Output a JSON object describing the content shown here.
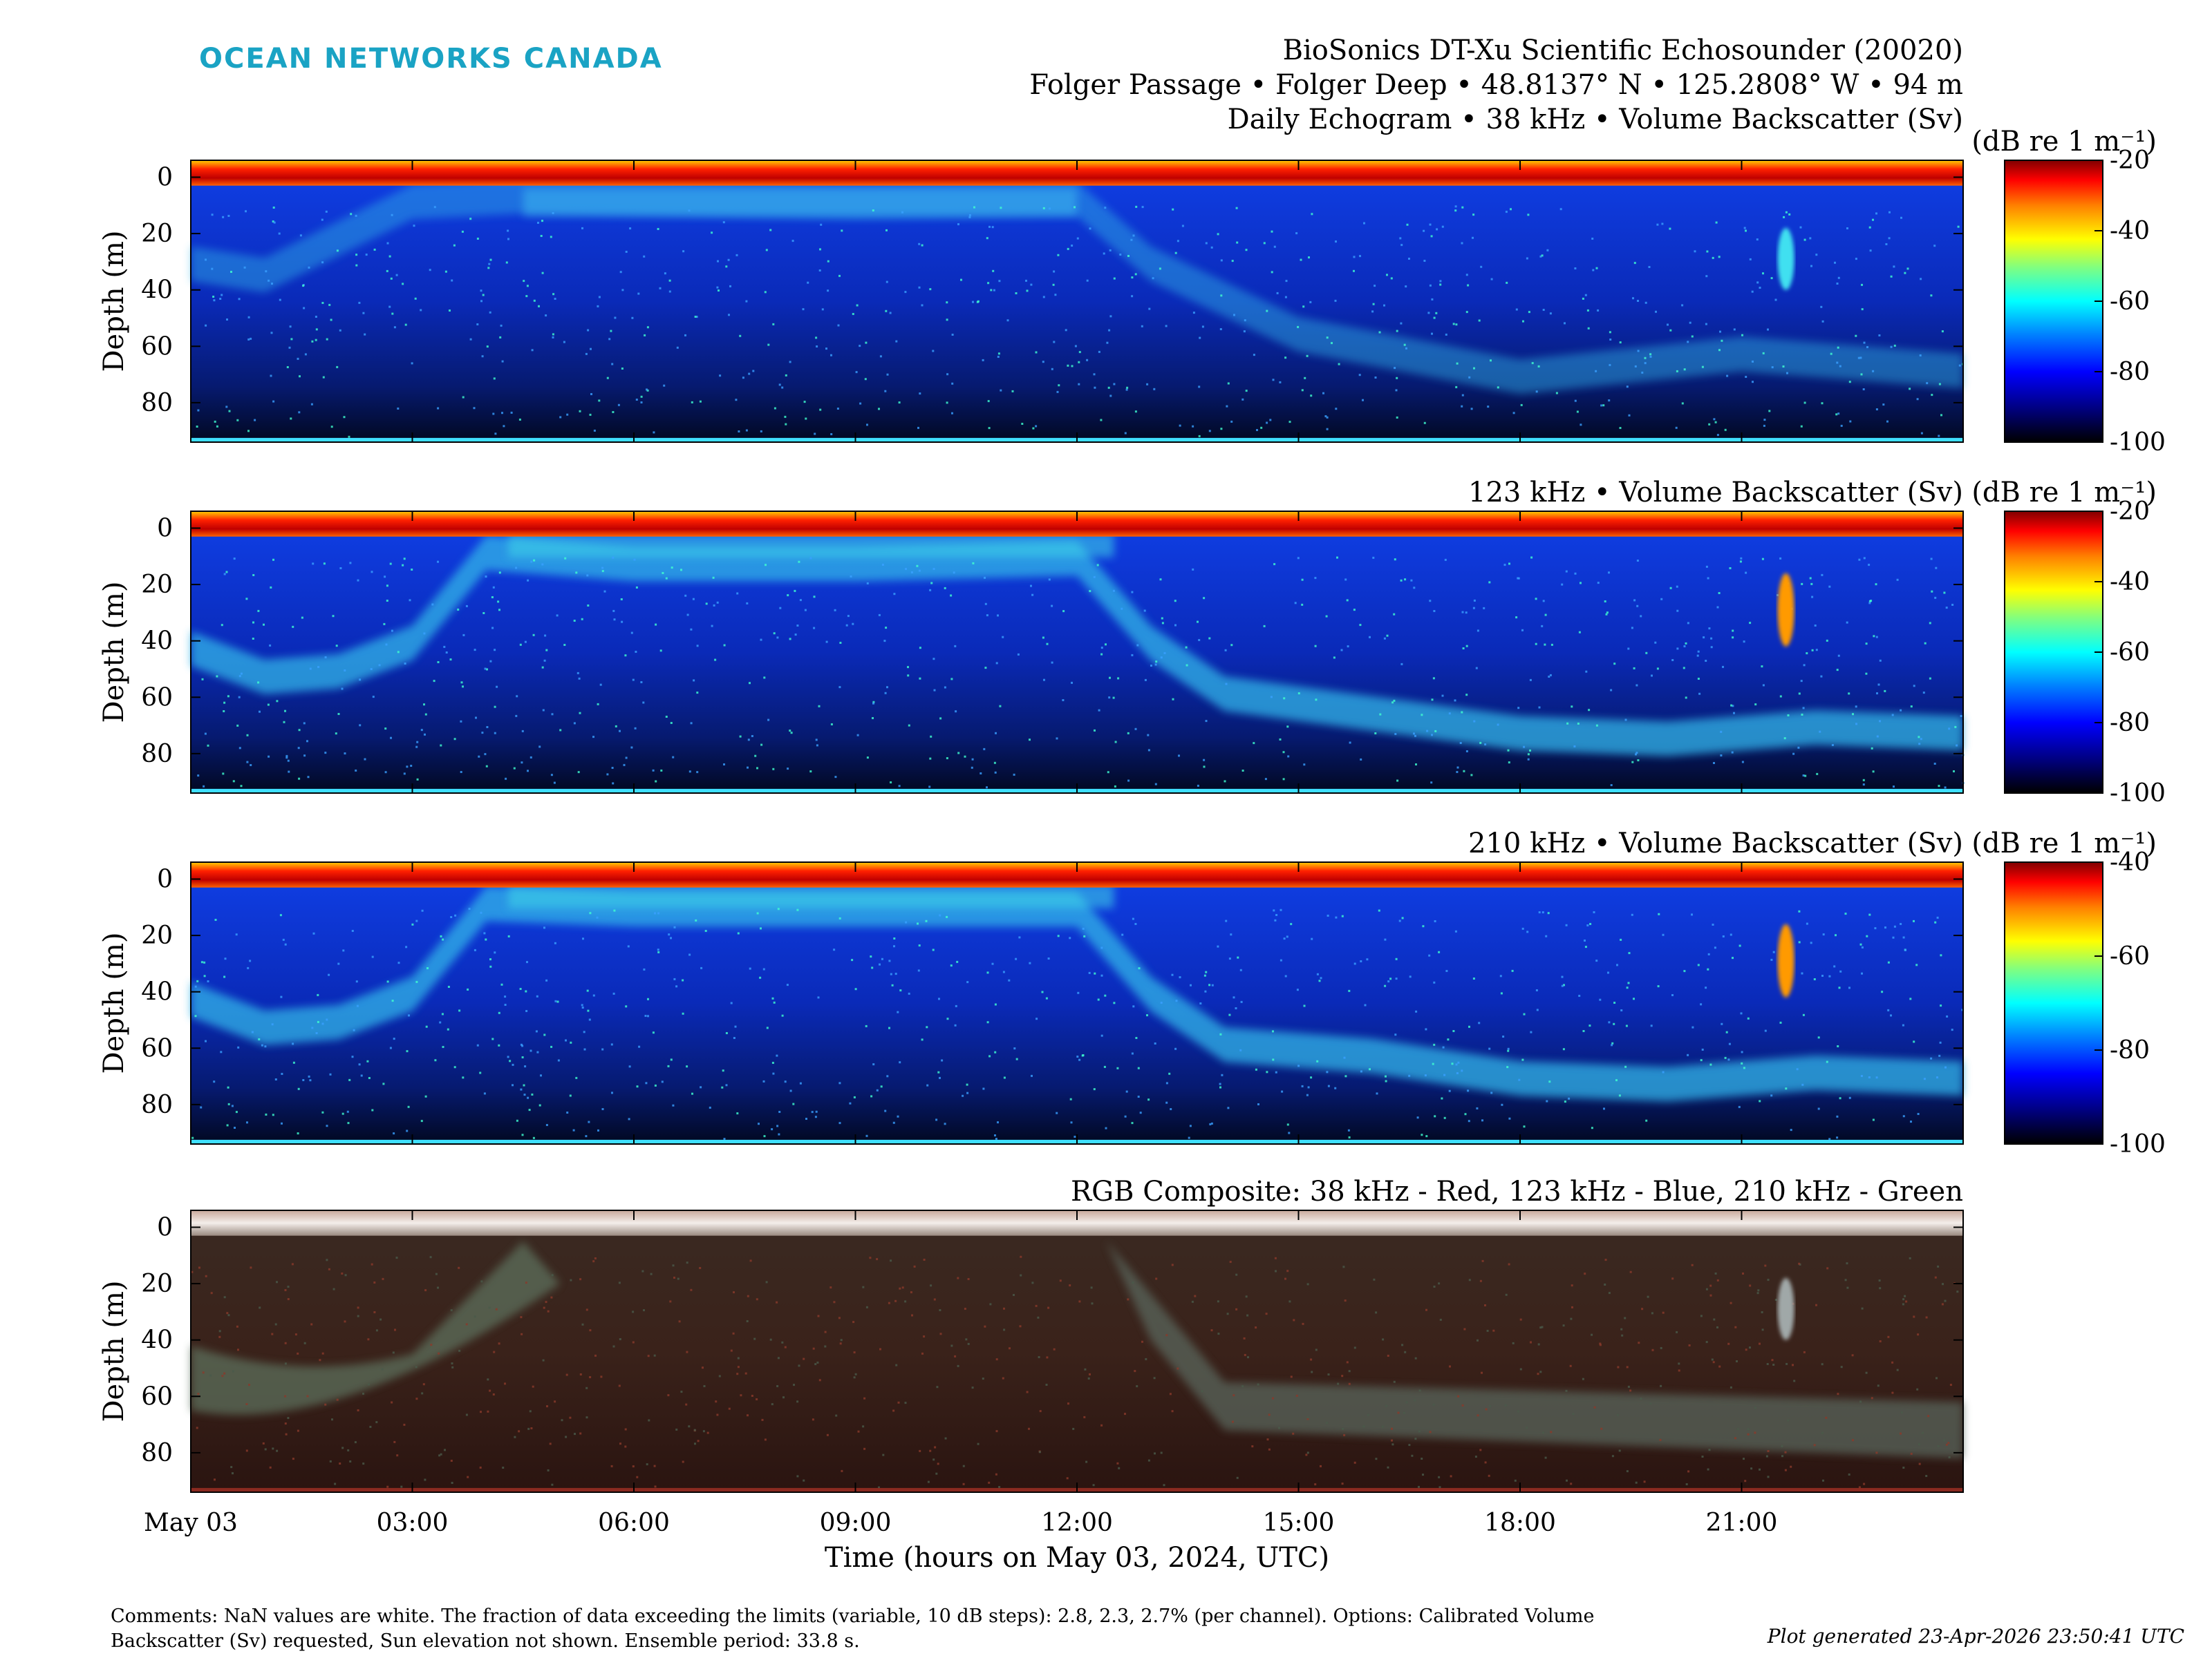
{
  "logo": "OCEAN NETWORKS CANADA",
  "header": {
    "line1": "BioSonics DT-Xu Scientific Echosounder (20020)",
    "line2": "Folger Passage • Folger Deep • 48.8137° N • 125.2808° W • 94 m",
    "line3": "Daily Echogram • 38 kHz • Volume Backscatter (Sv)"
  },
  "chart_data": [
    {
      "type": "heatmap",
      "title": "Daily Echogram • 38 kHz • Volume Backscatter (Sv)",
      "ylabel": "Depth (m)",
      "ylim": [
        94,
        -6
      ],
      "yticks": [
        0,
        20,
        40,
        60,
        80
      ],
      "xlim": [
        0,
        24
      ],
      "colorbar": {
        "label": "(dB re 1 m⁻¹)",
        "range": [
          -100,
          -20
        ],
        "ticks": [
          "-20",
          "-40",
          "-60",
          "-80",
          "-100"
        ],
        "colormap": "jet"
      },
      "features": {
        "surface_layer_depth_m": [
          0,
          3
        ],
        "bottom_depth_m": 92.5,
        "scattering_layer_depth_m": [
          [
            0,
            30
          ],
          [
            1,
            34
          ],
          [
            3,
            8
          ],
          [
            4.5,
            6
          ],
          [
            9,
            8
          ],
          [
            12,
            7
          ],
          [
            13,
            30
          ],
          [
            15,
            55
          ],
          [
            18,
            70
          ],
          [
            21,
            62
          ],
          [
            24,
            68
          ]
        ],
        "night_upper_layer_m": [
          [
            4.5,
            4
          ],
          [
            12,
            6
          ]
        ],
        "school_time_h": 21.6,
        "school_depth_m": [
          18,
          40
        ]
      }
    },
    {
      "type": "heatmap",
      "title": "123 kHz • Volume Backscatter (Sv)",
      "ylabel": "Depth (m)",
      "ylim": [
        94,
        -6
      ],
      "yticks": [
        0,
        20,
        40,
        60,
        80
      ],
      "xlim": [
        0,
        24
      ],
      "colorbar": {
        "label": "(dB re 1 m⁻¹)",
        "range": [
          -100,
          -20
        ],
        "ticks": [
          "-20",
          "-40",
          "-60",
          "-80",
          "-100"
        ],
        "colormap": "jet"
      },
      "features": {
        "surface_layer_depth_m": [
          0,
          3
        ],
        "bottom_depth_m": 92.5,
        "scattering_layer_depth_m": [
          [
            0,
            42
          ],
          [
            1,
            52
          ],
          [
            2,
            50
          ],
          [
            3,
            40
          ],
          [
            4,
            8
          ],
          [
            6,
            12
          ],
          [
            9,
            12
          ],
          [
            12,
            10
          ],
          [
            13,
            40
          ],
          [
            14,
            58
          ],
          [
            16,
            65
          ],
          [
            18,
            72
          ],
          [
            20,
            74
          ],
          [
            22,
            70
          ],
          [
            24,
            72
          ]
        ],
        "school_time_h": 21.6,
        "school_depth_m": [
          16,
          42
        ]
      }
    },
    {
      "type": "heatmap",
      "title": "210 kHz • Volume Backscatter (Sv)",
      "ylabel": "Depth (m)",
      "ylim": [
        94,
        -6
      ],
      "yticks": [
        0,
        20,
        40,
        60,
        80
      ],
      "xlim": [
        0,
        24
      ],
      "colorbar": {
        "label": "(dB re 1 m⁻¹)",
        "range": [
          -100,
          -40
        ],
        "ticks": [
          "-40",
          "-60",
          "-80",
          "-100"
        ],
        "colormap": "jet"
      },
      "features": {
        "surface_layer_depth_m": [
          0,
          3
        ],
        "bottom_depth_m": 92.5,
        "scattering_layer_depth_m": [
          [
            0,
            42
          ],
          [
            1,
            52
          ],
          [
            2,
            50
          ],
          [
            3,
            40
          ],
          [
            4,
            8
          ],
          [
            6,
            10
          ],
          [
            9,
            10
          ],
          [
            12,
            10
          ],
          [
            13,
            40
          ],
          [
            14,
            58
          ],
          [
            16,
            62
          ],
          [
            18,
            70
          ],
          [
            20,
            72
          ],
          [
            22,
            68
          ],
          [
            24,
            70
          ]
        ],
        "school_time_h": 21.6,
        "school_depth_m": [
          16,
          42
        ]
      }
    },
    {
      "type": "heatmap",
      "title": "RGB Composite: 38 kHz - Red, 123 kHz - Blue, 210 kHz - Green",
      "ylabel": "Depth (m)",
      "ylim": [
        94,
        -6
      ],
      "yticks": [
        0,
        20,
        40,
        60,
        80
      ],
      "xlim": [
        0,
        24
      ],
      "xticks": [
        "May 03",
        "03:00",
        "06:00",
        "09:00",
        "12:00",
        "15:00",
        "18:00",
        "21:00"
      ],
      "xlabel": "Time (hours on May 03, 2024, UTC)",
      "features": {
        "surface_layer_depth_m": [
          0,
          3
        ],
        "bottom_depth_m": 92.5,
        "school_time_h": 21.6,
        "school_depth_m": [
          18,
          40
        ]
      }
    }
  ],
  "footer": {
    "comments": "Comments: NaN values are white. The fraction of data exceeding the limits (variable, 10 dB steps): 2.8, 2.3, 2.7% (per channel). Options: Calibrated Volume Backscatter (Sv) requested, Sun elevation not shown. Ensemble period: 33.8 s.",
    "generated": "Plot generated 23-Apr-2026 23:50:41 UTC"
  }
}
